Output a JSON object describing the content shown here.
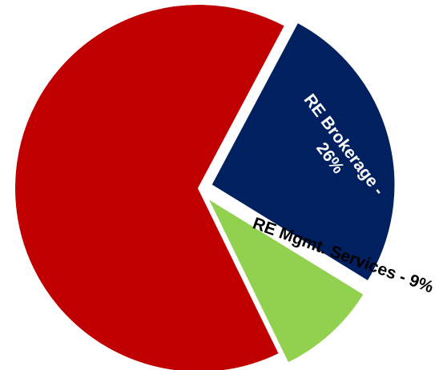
{
  "chart_data": {
    "type": "pie",
    "title": "",
    "slices": [
      {
        "label": "",
        "value": 65,
        "color": "#c00000",
        "exploded": false
      },
      {
        "label": "RE Brokerage -",
        "label_line2": "26%",
        "value": 26,
        "color": "#002060",
        "text_color": "#ffffff",
        "exploded": true
      },
      {
        "label": "RE Mgmt. Services - 9%",
        "value": 9,
        "color": "#92d050",
        "text_color": "#000000",
        "exploded": true
      }
    ]
  }
}
